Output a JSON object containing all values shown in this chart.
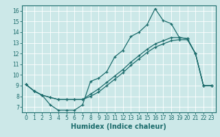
{
  "title": "",
  "xlabel": "Humidex (Indice chaleur)",
  "xlim": [
    -0.5,
    23.5
  ],
  "ylim": [
    6.5,
    16.5
  ],
  "xticks": [
    0,
    1,
    2,
    3,
    4,
    5,
    6,
    7,
    8,
    9,
    10,
    11,
    12,
    13,
    14,
    15,
    16,
    17,
    18,
    19,
    20,
    21,
    22,
    23
  ],
  "yticks": [
    7,
    8,
    9,
    10,
    11,
    12,
    13,
    14,
    15,
    16
  ],
  "bg_color": "#cce8e8",
  "line_color": "#1a6b6b",
  "grid_color": "#ffffff",
  "line1_x": [
    0,
    1,
    2,
    3,
    4,
    5,
    6,
    7,
    8,
    9,
    10,
    11,
    12,
    13,
    14,
    15,
    16,
    17,
    18,
    19,
    20,
    21,
    22,
    23
  ],
  "line1_y": [
    9.1,
    8.5,
    8.1,
    7.2,
    6.7,
    6.7,
    6.7,
    7.2,
    9.4,
    9.7,
    10.3,
    11.7,
    12.3,
    13.6,
    14.0,
    14.7,
    16.2,
    15.1,
    14.8,
    13.5,
    13.4,
    12.0,
    9.0,
    9.0
  ],
  "line2_x": [
    0,
    1,
    2,
    3,
    4,
    5,
    6,
    7,
    8,
    9,
    10,
    11,
    12,
    13,
    14,
    15,
    16,
    17,
    18,
    19,
    20,
    21,
    22,
    23
  ],
  "line2_y": [
    9.1,
    8.5,
    8.1,
    7.9,
    7.7,
    7.7,
    7.7,
    7.7,
    8.2,
    8.7,
    9.3,
    9.9,
    10.5,
    11.2,
    11.8,
    12.4,
    12.9,
    13.2,
    13.5,
    13.5,
    13.4,
    12.0,
    9.0,
    9.0
  ],
  "line3_x": [
    0,
    1,
    2,
    3,
    4,
    5,
    6,
    7,
    8,
    9,
    10,
    11,
    12,
    13,
    14,
    15,
    16,
    17,
    18,
    19,
    20,
    21,
    22,
    23
  ],
  "line3_y": [
    9.1,
    8.5,
    8.1,
    7.9,
    7.7,
    7.7,
    7.7,
    7.7,
    8.0,
    8.4,
    9.0,
    9.6,
    10.2,
    10.9,
    11.5,
    12.1,
    12.6,
    12.9,
    13.2,
    13.3,
    13.3,
    12.0,
    9.0,
    9.0
  ],
  "fontsize_label": 7,
  "fontsize_tick": 5.5
}
